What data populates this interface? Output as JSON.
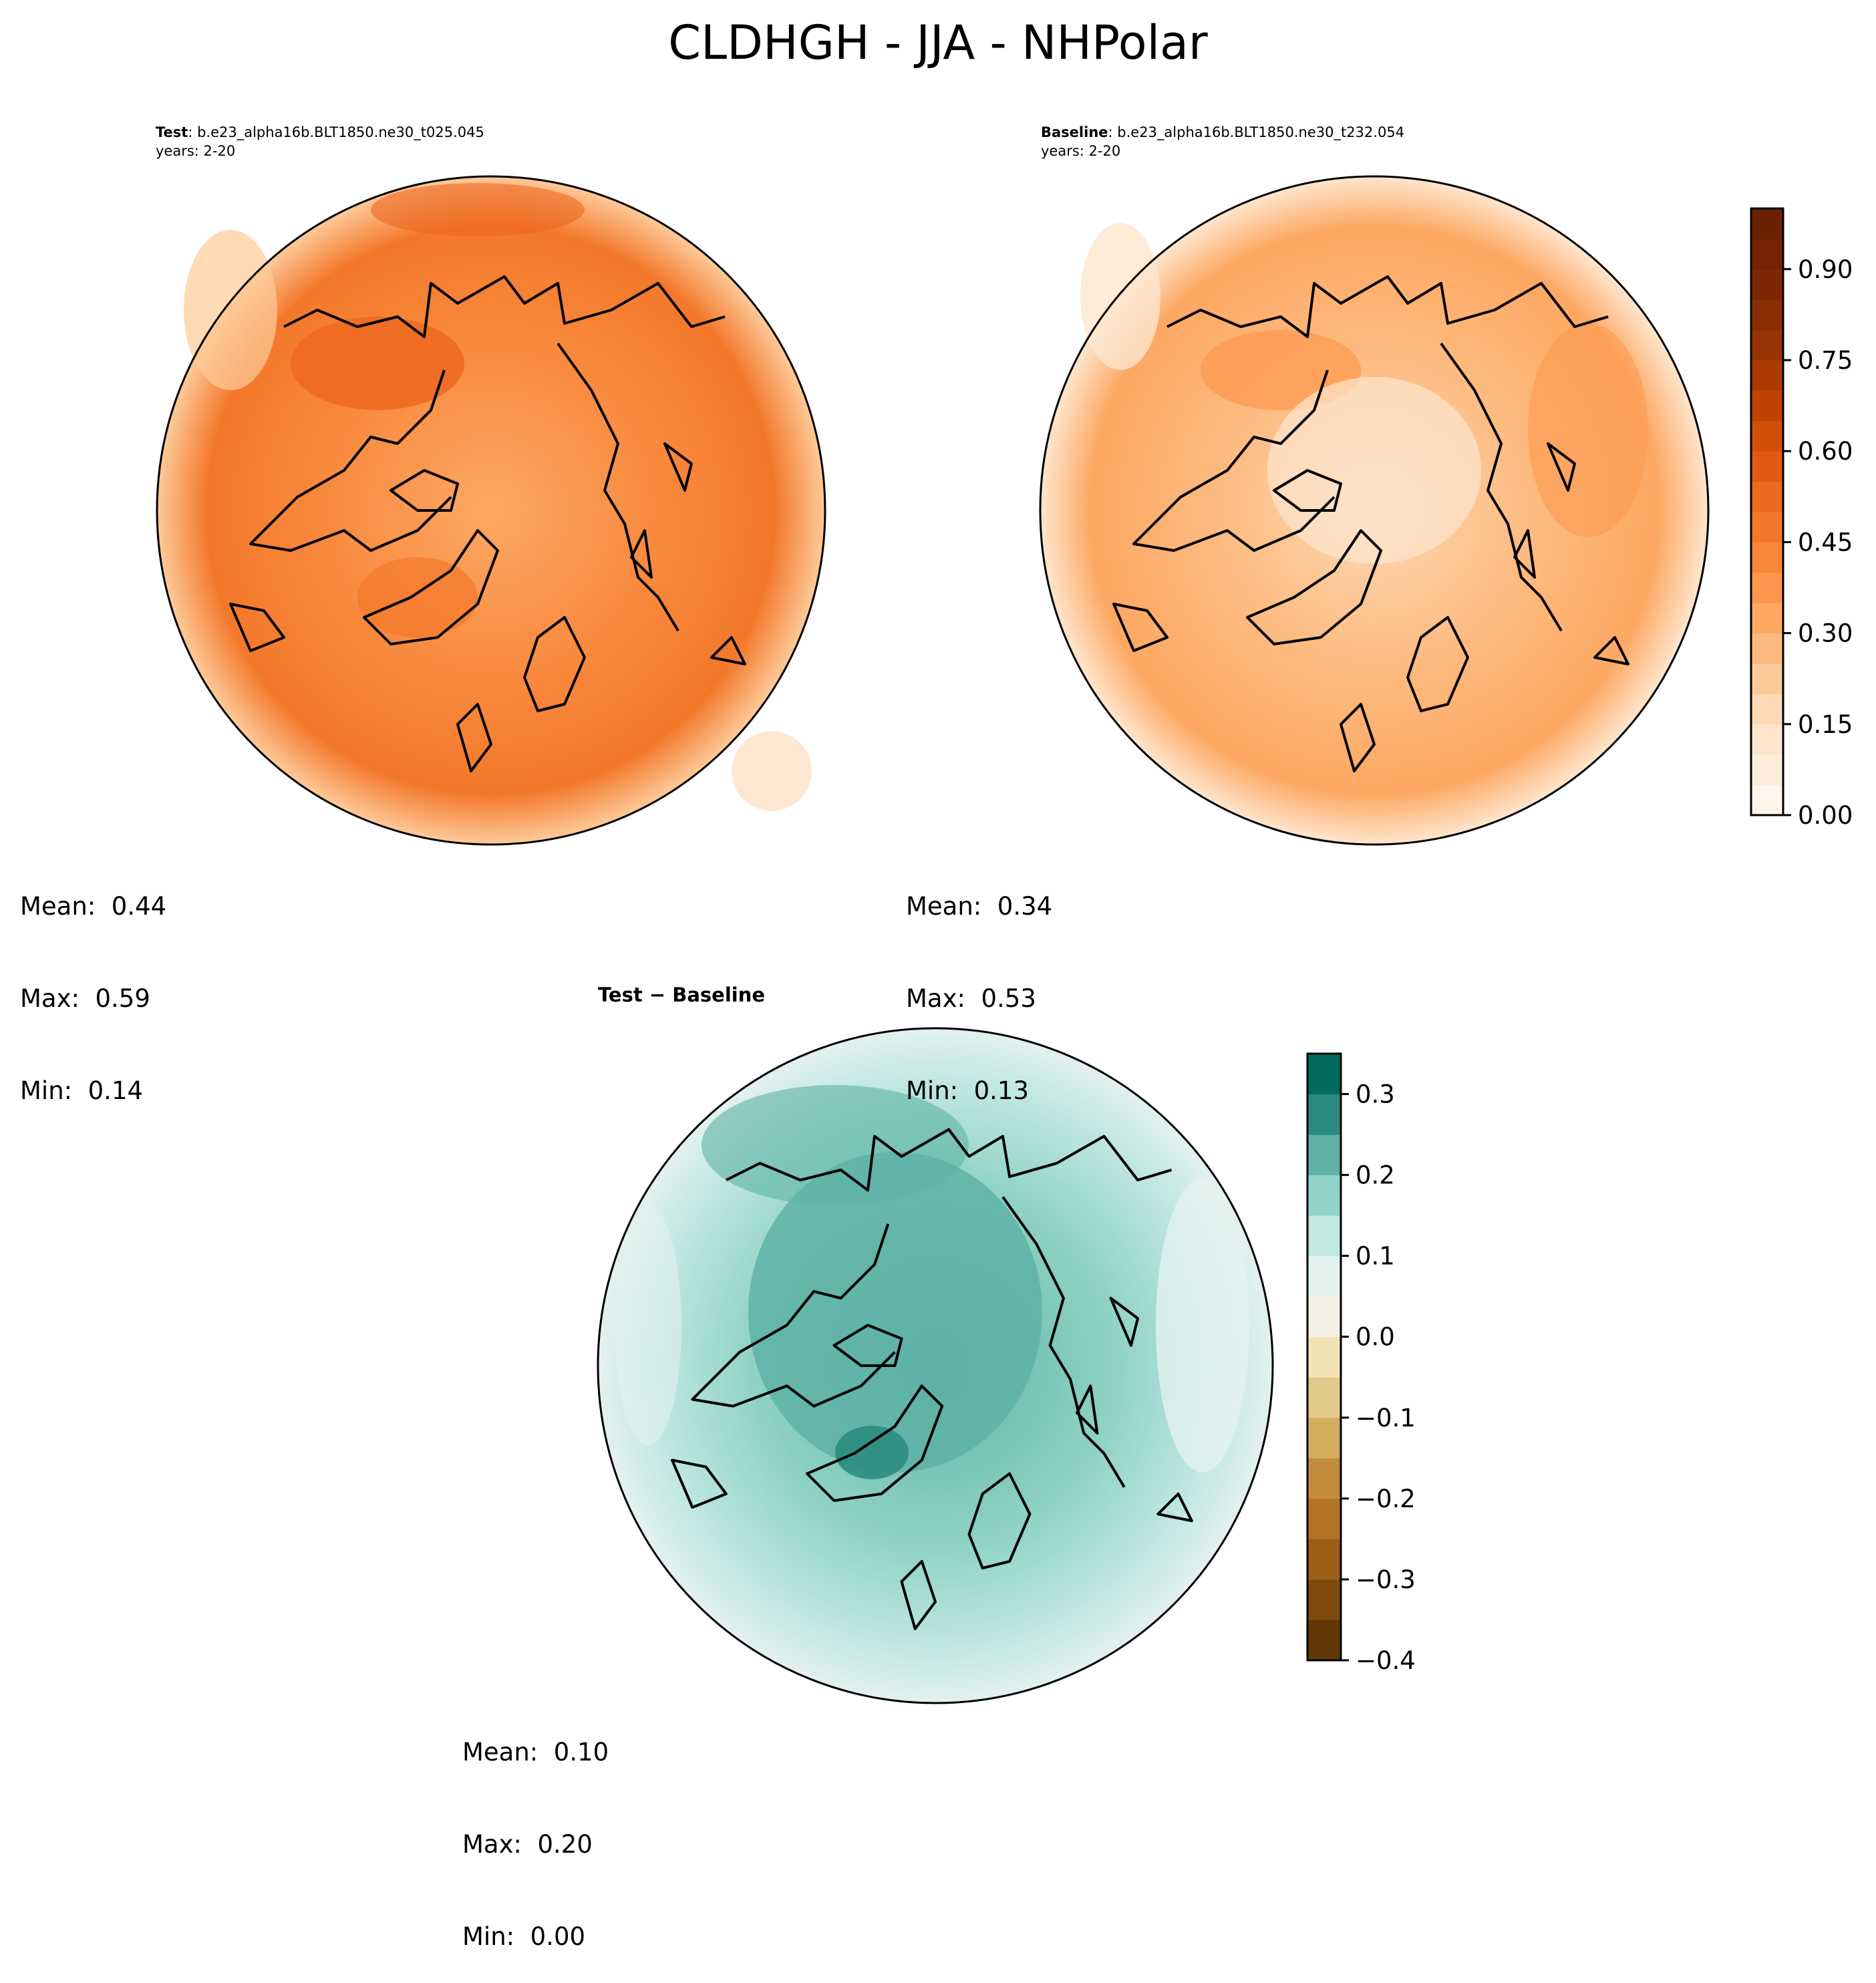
{
  "figure": {
    "suptitle": "CLDHGH - JJA - NHPolar"
  },
  "panels": {
    "test": {
      "label": "Test",
      "case": ": b.e23_alpha16b.BLT1850.ne30_t025.045",
      "years": "years: 2-20",
      "stats": {
        "mean": "Mean:  0.44",
        "max": "Max:  0.59",
        "min": "Min:  0.14"
      }
    },
    "baseline": {
      "label": "Baseline",
      "case": ": b.e23_alpha16b.BLT1850.ne30_t232.054",
      "years": "years: 2-20",
      "stats": {
        "mean": "Mean:  0.34",
        "max": "Max:  0.53",
        "min": "Min:  0.13"
      }
    },
    "diff": {
      "title": "Test − Baseline",
      "stats": {
        "mean": "Mean:  0.10",
        "max": "Max:  0.20",
        "min": "Min:  0.00"
      }
    }
  },
  "chart_data": [
    {
      "type": "heatmap",
      "title": "Test",
      "projection": "north-polar-stereographic",
      "variable": "CLDHGH",
      "season": "JJA",
      "summary": {
        "mean": 0.44,
        "max": 0.59,
        "min": 0.14
      }
    },
    {
      "type": "heatmap",
      "title": "Baseline",
      "projection": "north-polar-stereographic",
      "variable": "CLDHGH",
      "season": "JJA",
      "summary": {
        "mean": 0.34,
        "max": 0.53,
        "min": 0.13
      }
    },
    {
      "type": "heatmap",
      "title": "Test − Baseline",
      "projection": "north-polar-stereographic",
      "variable": "CLDHGH",
      "season": "JJA",
      "summary": {
        "mean": 0.1,
        "max": 0.2,
        "min": 0.0
      }
    }
  ],
  "colorbars": {
    "main": {
      "range": [
        0.0,
        1.0
      ],
      "levels": [
        0,
        0.05,
        0.1,
        0.15,
        0.2,
        0.25,
        0.3,
        0.35,
        0.4,
        0.45,
        0.5,
        0.55,
        0.6,
        0.65,
        0.7,
        0.75,
        0.8,
        0.85,
        0.9,
        0.95,
        1.0
      ],
      "ticks": [
        0.0,
        0.15,
        0.3,
        0.45,
        0.6,
        0.75,
        0.9
      ],
      "tick_labels": [
        "0.00",
        "0.15",
        "0.30",
        "0.45",
        "0.60",
        "0.75",
        "0.90"
      ],
      "colors": [
        "#fff5eb",
        "#feeddc",
        "#fee6ce",
        "#fdd9b5",
        "#fdca99",
        "#fdb97d",
        "#fda863",
        "#fd974d",
        "#f8873b",
        "#f3782b",
        "#ed6820",
        "#e05a13",
        "#d24f08",
        "#c04303",
        "#ab3b03",
        "#983404",
        "#892e04",
        "#7f2704",
        "#752303",
        "#6c2003"
      ]
    },
    "diff": {
      "range": [
        -0.4,
        0.35
      ],
      "levels": [
        -0.4,
        -0.35,
        -0.3,
        -0.25,
        -0.2,
        -0.15,
        -0.1,
        -0.05,
        0.0,
        0.05,
        0.1,
        0.15,
        0.2,
        0.25,
        0.3,
        0.35
      ],
      "ticks": [
        -0.4,
        -0.3,
        -0.2,
        -0.1,
        0.0,
        0.1,
        0.2,
        0.3
      ],
      "tick_labels": [
        "−0.4",
        "−0.3",
        "−0.2",
        "−0.1",
        "0.0",
        "0.1",
        "0.2",
        "0.3"
      ],
      "colors": [
        "#623806",
        "#7e4a0c",
        "#9a5e17",
        "#b37426",
        "#c28b3d",
        "#d4ad5f",
        "#e3ca8b",
        "#f1e3b5",
        "#f3f0e4",
        "#e3f1ef",
        "#c2e8e2",
        "#91d3c8",
        "#5eb2a7",
        "#2c8b80",
        "#026b5d",
        "#00493c"
      ]
    }
  }
}
